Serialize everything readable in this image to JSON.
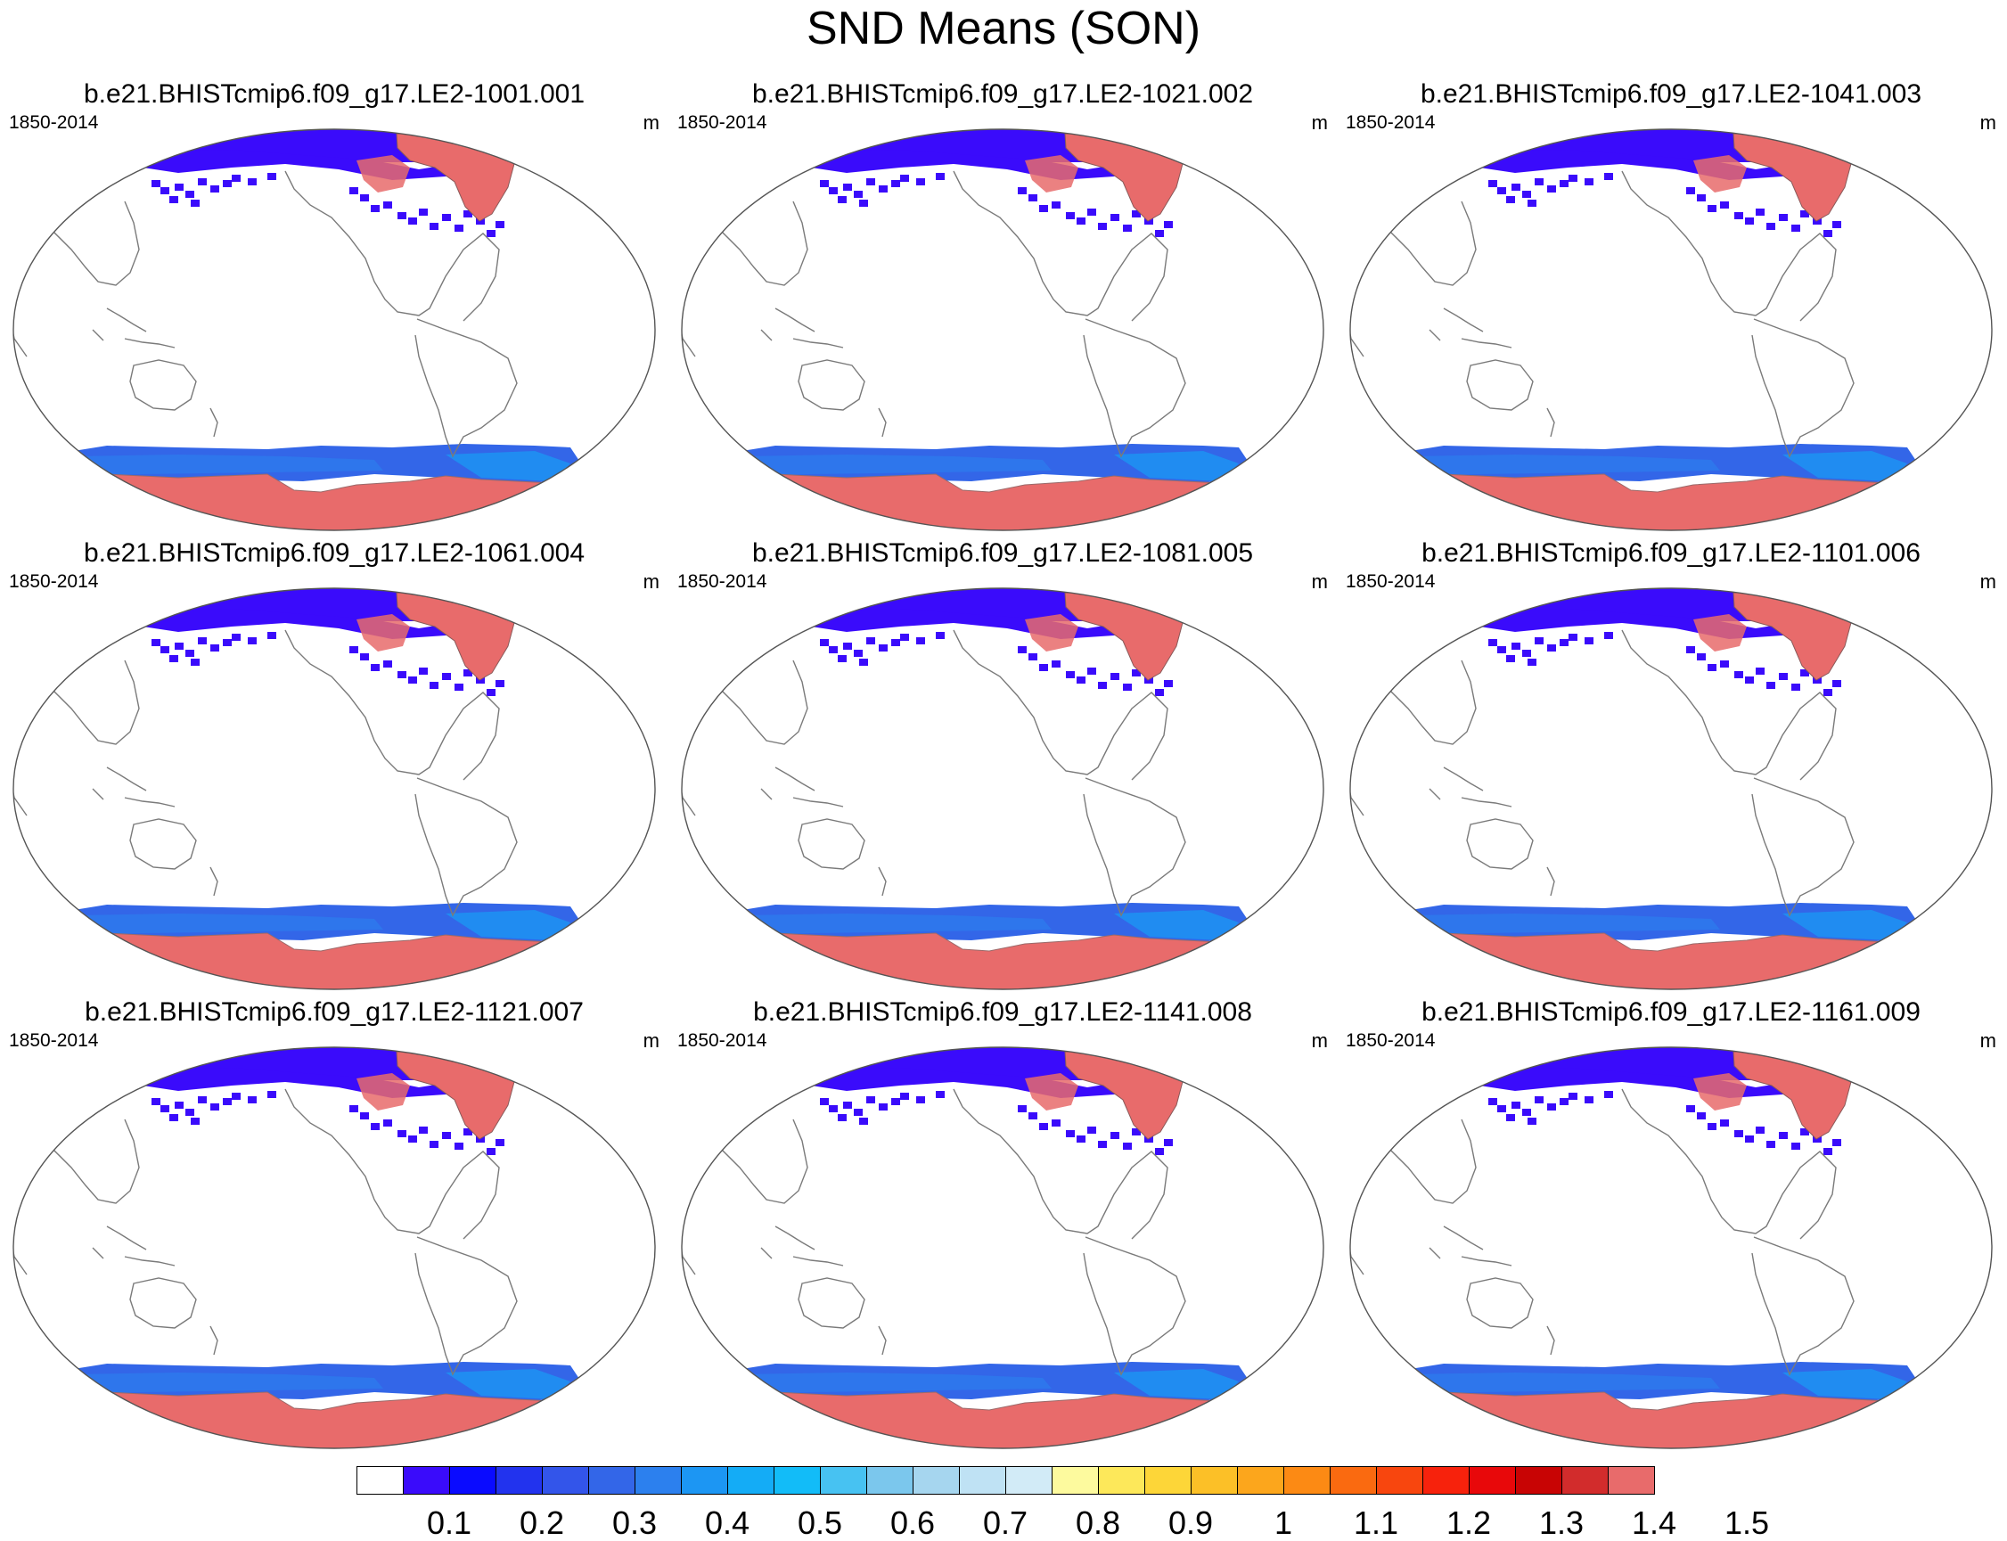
{
  "title": "SND Means (SON)",
  "panels": [
    {
      "title": "b.e21.BHISTcmip6.f09_g17.LE2-1001.001",
      "years": "1850-2014",
      "units": "m"
    },
    {
      "title": "b.e21.BHISTcmip6.f09_g17.LE2-1021.002",
      "years": "1850-2014",
      "units": "m"
    },
    {
      "title": "b.e21.BHISTcmip6.f09_g17.LE2-1041.003",
      "years": "1850-2014",
      "units": "m"
    },
    {
      "title": "b.e21.BHISTcmip6.f09_g17.LE2-1061.004",
      "years": "1850-2014",
      "units": "m"
    },
    {
      "title": "b.e21.BHISTcmip6.f09_g17.LE2-1081.005",
      "years": "1850-2014",
      "units": "m"
    },
    {
      "title": "b.e21.BHISTcmip6.f09_g17.LE2-1101.006",
      "years": "1850-2014",
      "units": "m"
    },
    {
      "title": "b.e21.BHISTcmip6.f09_g17.LE2-1121.007",
      "years": "1850-2014",
      "units": "m"
    },
    {
      "title": "b.e21.BHISTcmip6.f09_g17.LE2-1141.008",
      "years": "1850-2014",
      "units": "m"
    },
    {
      "title": "b.e21.BHISTcmip6.f09_g17.LE2-1161.009",
      "years": "1850-2014",
      "units": "m"
    }
  ],
  "colorbar": {
    "labels": [
      "0.1",
      "0.2",
      "0.3",
      "0.4",
      "0.5",
      "0.6",
      "0.7",
      "0.8",
      "0.9",
      "1",
      "1.1",
      "1.2",
      "1.3",
      "1.4",
      "1.5"
    ],
    "colors": [
      "#ffffff",
      "#3a0bfb",
      "#0a0bff",
      "#2233ee",
      "#3355ea",
      "#3366e8",
      "#2c80ee",
      "#1c96f3",
      "#14acf6",
      "#12bcf8",
      "#47c2f2",
      "#7bc7ed",
      "#a6d6ef",
      "#bfe2f4",
      "#d2ebf7",
      "#fdfa9e",
      "#fde85a",
      "#fdd638",
      "#fcc027",
      "#fca61c",
      "#fc8a14",
      "#fa6a10",
      "#f8460e",
      "#f7220c",
      "#e8080a",
      "#c80404",
      "#d22c2c",
      "#e86b6b"
    ]
  },
  "map_legend": {
    "arctic_fill": "#3a0bfb",
    "greenland_fill": "#e86b6b",
    "antarctic_fill": "#e86b6b",
    "southern_ocean_fill": "#3366e8",
    "coast_color": "#7a7a7a"
  }
}
